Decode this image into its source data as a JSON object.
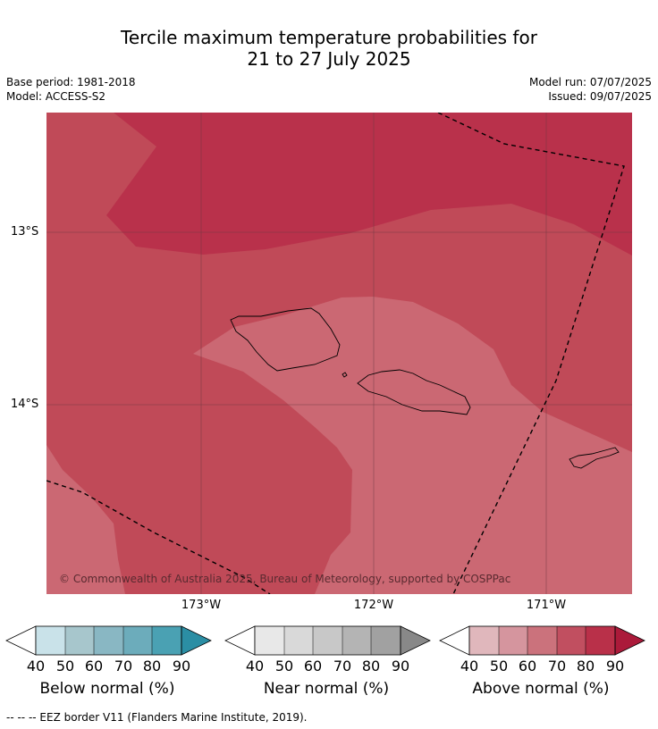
{
  "title": {
    "line1": "Tercile maximum temperature probabilities for",
    "line2": "21 to 27 July 2025"
  },
  "meta": {
    "base_period": "Base period: 1981-2018",
    "model": "Model: ACCESS-S2",
    "model_run": "Model run: 07/07/2025",
    "issued": "Issued: 09/07/2025"
  },
  "map": {
    "lat_labels": [
      "13°S",
      "14°S"
    ],
    "lon_labels": [
      "173°W",
      "172°W",
      "171°W"
    ],
    "copyright": "© Commonwealth of Australia 2025, Bureau of Meteorology, supported by COSPPac",
    "colors": {
      "p60_70": "#cb6873",
      "p70_80": "#c04a58",
      "p80_90": "#b9314b",
      "coast": "#000000",
      "eez_border": "#000000"
    }
  },
  "legends": [
    {
      "label": "Below normal (%)",
      "ticks": [
        "40",
        "50",
        "60",
        "70",
        "80",
        "90"
      ],
      "colors": [
        "#c9e2e9",
        "#a7c6cc",
        "#89b7c3",
        "#6cacbb",
        "#4aa1b3",
        "#2b8ea4"
      ]
    },
    {
      "label": "Near normal (%)",
      "ticks": [
        "40",
        "50",
        "60",
        "70",
        "80",
        "90"
      ],
      "colors": [
        "#e8e8e8",
        "#d9d9d9",
        "#c8c8c8",
        "#b4b4b4",
        "#a1a1a1",
        "#888888"
      ]
    },
    {
      "label": "Above normal (%)",
      "ticks": [
        "40",
        "50",
        "60",
        "70",
        "80",
        "90"
      ],
      "colors": [
        "#e0b7bc",
        "#d5959e",
        "#cb727c",
        "#c14f60",
        "#b93049",
        "#ab1a3a"
      ]
    }
  ],
  "footnote": "--  --  -- EEZ border V11 (Flanders Marine Institute, 2019)."
}
